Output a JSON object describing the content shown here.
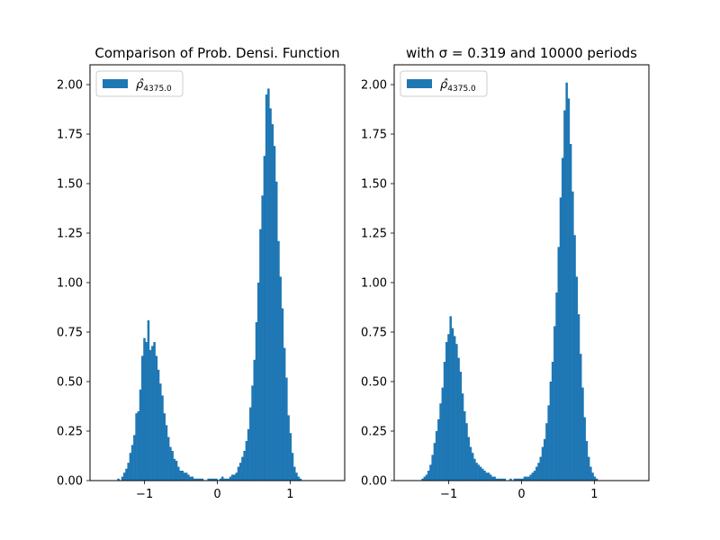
{
  "figure": {
    "background": "#ffffff",
    "bar_color": "#1f77b4"
  },
  "chart_data": [
    {
      "type": "bar",
      "title": "Comparison of Prob. Densi. Function",
      "xlabel": "",
      "ylabel": "",
      "xlim": [
        -1.75,
        1.75
      ],
      "ylim": [
        0,
        2.1
      ],
      "xticks": [
        {
          "value": -1,
          "label": "−1"
        },
        {
          "value": 0,
          "label": "0"
        },
        {
          "value": 1,
          "label": "1"
        }
      ],
      "yticks": [
        {
          "value": 0,
          "label": "0.00"
        },
        {
          "value": 0.25,
          "label": "0.25"
        },
        {
          "value": 0.5,
          "label": "0.50"
        },
        {
          "value": 0.75,
          "label": "0.75"
        },
        {
          "value": 1.0,
          "label": "1.00"
        },
        {
          "value": 1.25,
          "label": "1.25"
        },
        {
          "value": 1.5,
          "label": "1.50"
        },
        {
          "value": 1.75,
          "label": "1.75"
        },
        {
          "value": 2.0,
          "label": "2.00"
        }
      ],
      "grid": false,
      "legend": {
        "position": "top-left",
        "entries": [
          {
            "symbol": "ρ̂",
            "subscript": "4375.0"
          }
        ]
      },
      "bin_start": -1.375,
      "bin_width": 0.0275,
      "values": [
        0.01,
        0.0,
        0.02,
        0.04,
        0.06,
        0.09,
        0.14,
        0.18,
        0.23,
        0.34,
        0.35,
        0.46,
        0.63,
        0.72,
        0.7,
        0.81,
        0.66,
        0.68,
        0.7,
        0.63,
        0.56,
        0.49,
        0.43,
        0.34,
        0.28,
        0.22,
        0.17,
        0.15,
        0.11,
        0.1,
        0.07,
        0.05,
        0.05,
        0.04,
        0.04,
        0.03,
        0.02,
        0.02,
        0.01,
        0.01,
        0.01,
        0.01,
        0.01,
        0.0,
        0.0,
        0.01,
        0.01,
        0.01,
        0.01,
        0.01,
        0.0,
        0.01,
        0.02,
        0.01,
        0.01,
        0.01,
        0.02,
        0.03,
        0.03,
        0.04,
        0.07,
        0.09,
        0.12,
        0.15,
        0.2,
        0.26,
        0.37,
        0.48,
        0.61,
        0.8,
        1.0,
        1.27,
        1.44,
        1.64,
        1.95,
        1.98,
        1.88,
        1.8,
        1.69,
        1.51,
        1.21,
        1.03,
        0.87,
        0.67,
        0.52,
        0.33,
        0.24,
        0.14,
        0.07,
        0.04,
        0.02,
        0.01
      ]
    },
    {
      "type": "bar",
      "title": "with σ = 0.319 and 10000 periods",
      "xlabel": "",
      "ylabel": "",
      "xlim": [
        -1.75,
        1.75
      ],
      "ylim": [
        0,
        2.1
      ],
      "xticks": [
        {
          "value": -1,
          "label": "−1"
        },
        {
          "value": 0,
          "label": "0"
        },
        {
          "value": 1,
          "label": "1"
        }
      ],
      "yticks": [
        {
          "value": 0,
          "label": "0.00"
        },
        {
          "value": 0.25,
          "label": "0.25"
        },
        {
          "value": 0.5,
          "label": "0.50"
        },
        {
          "value": 0.75,
          "label": "0.75"
        },
        {
          "value": 1.0,
          "label": "1.00"
        },
        {
          "value": 1.25,
          "label": "1.25"
        },
        {
          "value": 1.5,
          "label": "1.50"
        },
        {
          "value": 1.75,
          "label": "1.75"
        },
        {
          "value": 2.0,
          "label": "2.00"
        }
      ],
      "grid": false,
      "legend": {
        "position": "top-left",
        "entries": [
          {
            "symbol": "ρ̂",
            "subscript": "4375.0"
          }
        ]
      },
      "bin_start": -1.375,
      "bin_width": 0.0275,
      "values": [
        0.01,
        0.02,
        0.03,
        0.05,
        0.08,
        0.13,
        0.19,
        0.25,
        0.31,
        0.39,
        0.47,
        0.6,
        0.7,
        0.74,
        0.83,
        0.77,
        0.73,
        0.69,
        0.62,
        0.55,
        0.44,
        0.35,
        0.29,
        0.22,
        0.17,
        0.14,
        0.11,
        0.09,
        0.08,
        0.07,
        0.06,
        0.05,
        0.04,
        0.04,
        0.03,
        0.02,
        0.02,
        0.01,
        0.01,
        0.01,
        0.01,
        0.01,
        0.0,
        0.0,
        0.01,
        0.0,
        0.01,
        0.01,
        0.01,
        0.01,
        0.01,
        0.02,
        0.02,
        0.02,
        0.03,
        0.04,
        0.05,
        0.07,
        0.09,
        0.12,
        0.17,
        0.21,
        0.29,
        0.38,
        0.5,
        0.6,
        0.78,
        0.95,
        1.18,
        1.43,
        1.63,
        1.87,
        2.01,
        1.93,
        1.7,
        1.46,
        1.24,
        1.03,
        0.84,
        0.64,
        0.47,
        0.32,
        0.2,
        0.12,
        0.07,
        0.04,
        0.02,
        0.01
      ]
    }
  ]
}
